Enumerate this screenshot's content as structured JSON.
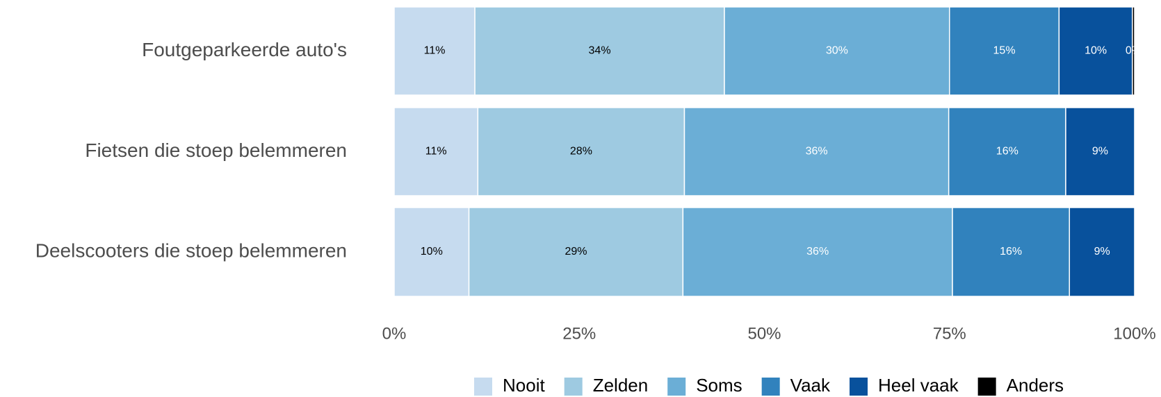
{
  "chart_data": {
    "type": "stacked_bar_horizontal",
    "categories": [
      "Foutgeparkeerde auto's",
      "Fietsen die stoep belemmeren",
      "Deelscooters die stoep belemmeren"
    ],
    "series": [
      {
        "name": "Nooit",
        "color": "#c6dbef",
        "label_color": "#000000",
        "values": [
          10.9,
          11.3,
          10.1
        ],
        "value_labels": [
          "11%",
          "11%",
          "10%"
        ]
      },
      {
        "name": "Zelden",
        "color": "#9ecae1",
        "label_color": "#000000",
        "values": [
          33.7,
          27.9,
          28.9
        ],
        "value_labels": [
          "34%",
          "28%",
          "29%"
        ]
      },
      {
        "name": "Soms",
        "color": "#6baed6",
        "label_color": "#ffffff",
        "values": [
          30.4,
          35.7,
          36.4
        ],
        "value_labels": [
          "30%",
          "36%",
          "36%"
        ]
      },
      {
        "name": "Vaak",
        "color": "#3182bd",
        "label_color": "#ffffff",
        "values": [
          14.8,
          15.8,
          15.8
        ],
        "value_labels": [
          "15%",
          "16%",
          "16%"
        ]
      },
      {
        "name": "Heel vaak",
        "color": "#08519c",
        "label_color": "#ffffff",
        "values": [
          9.9,
          9.3,
          8.8
        ],
        "value_labels": [
          "10%",
          "9%",
          "9%"
        ]
      },
      {
        "name": "Anders",
        "color": "#000000",
        "label_color": "#ffffff",
        "values": [
          0.3,
          0,
          0
        ],
        "value_labels": [
          "0%",
          null,
          null
        ]
      }
    ],
    "xlim": [
      0,
      100
    ],
    "xticks": [
      {
        "value": 0,
        "label": "0%"
      },
      {
        "value": 25,
        "label": "25%"
      },
      {
        "value": 50,
        "label": "50%"
      },
      {
        "value": 75,
        "label": "75%"
      },
      {
        "value": 100,
        "label": "100%"
      }
    ],
    "grid": false,
    "legend": "bottom"
  }
}
